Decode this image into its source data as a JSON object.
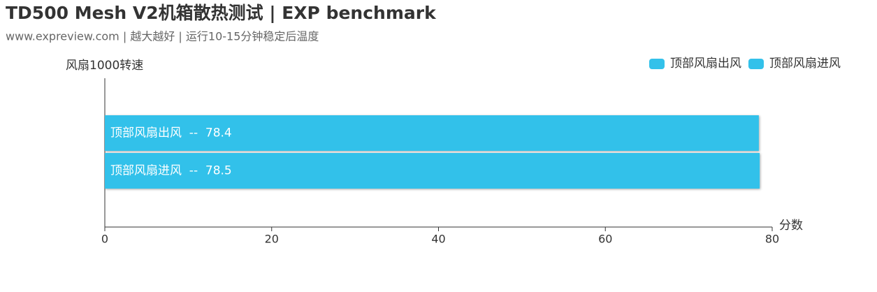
{
  "chart_data": {
    "type": "hbar",
    "title": "TD500 Mesh V2机箱散热测试 | EXP benchmark",
    "subtitle": "www.expreview.com | 越大越好 | 运行10-15分钟稳定后温度",
    "y_label": "风扇1000转速",
    "x_label": "分数",
    "series": [
      {
        "name": "顶部风扇出风",
        "color": "#33c1ea",
        "values": [
          78.4
        ],
        "value_labels": [
          "顶部风扇出风  --  78.4"
        ]
      },
      {
        "name": "顶部风扇进风",
        "color": "#33c1ea",
        "values": [
          78.5
        ],
        "value_labels": [
          "顶部风扇进风  --  78.5"
        ]
      }
    ],
    "xlim": [
      0,
      80
    ],
    "xticks": [
      0,
      20,
      40,
      60,
      80
    ],
    "grid": false,
    "legend": "top-right"
  }
}
